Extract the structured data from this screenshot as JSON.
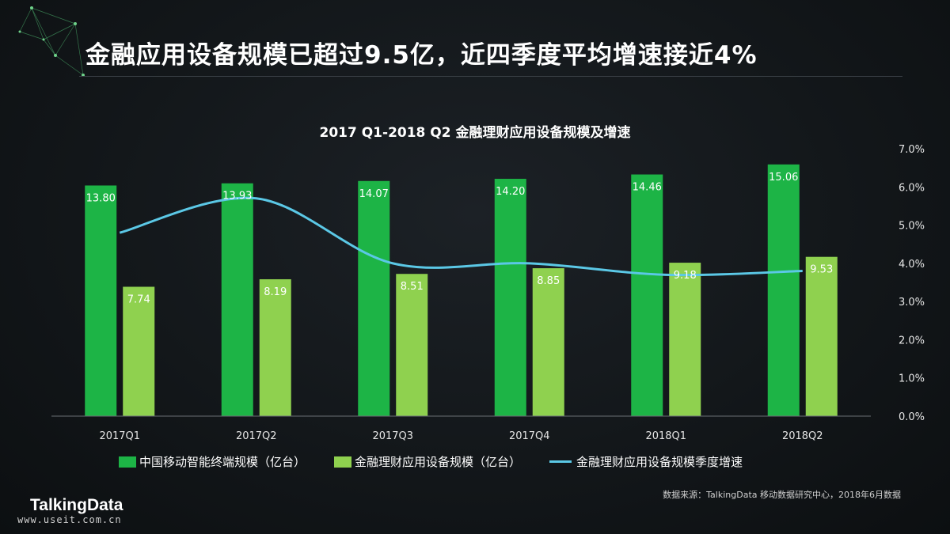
{
  "slide": {
    "title": "金融应用设备规模已超过9.5亿，近四季度平均增速接近4%",
    "source": "数据来源：TalkingData 移动数据研究中心，2018年6月数据",
    "logo_text": "TalkingData",
    "watermark": "www.useit.com.cn"
  },
  "chart_data": {
    "type": "bar",
    "title": "2017 Q1-2018 Q2 金融理财应用设备规模及增速",
    "categories": [
      "2017Q1",
      "2017Q2",
      "2017Q3",
      "2017Q4",
      "2018Q1",
      "2018Q2"
    ],
    "series": [
      {
        "name": "中国移动智能终端规模（亿台）",
        "type": "bar",
        "axis": "left",
        "values": [
          13.8,
          13.93,
          14.07,
          14.2,
          14.46,
          15.06
        ],
        "color": "#1db446"
      },
      {
        "name": "金融理财应用设备规模（亿台）",
        "type": "bar",
        "axis": "left",
        "values": [
          7.74,
          8.19,
          8.51,
          8.85,
          9.18,
          9.53
        ],
        "color": "#8fd14f"
      },
      {
        "name": "金融理财应用设备规模季度增速",
        "type": "line",
        "axis": "right",
        "values": [
          4.8,
          5.7,
          4.0,
          4.0,
          3.7,
          3.8
        ],
        "color": "#5bc8e6"
      }
    ],
    "y_left_lim": [
      0,
      16
    ],
    "y_right_lim": [
      0,
      7
    ],
    "y_right_ticks": [
      "0.0%",
      "1.0%",
      "2.0%",
      "3.0%",
      "4.0%",
      "5.0%",
      "6.0%",
      "7.0%"
    ],
    "legend_position": "bottom",
    "grid": false
  }
}
